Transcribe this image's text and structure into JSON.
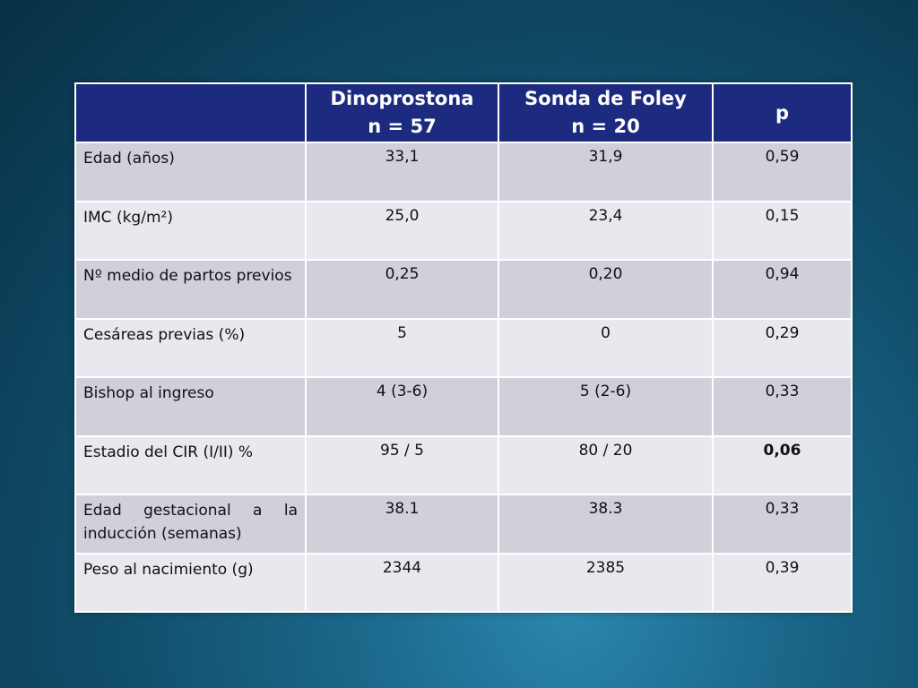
{
  "table": {
    "headers": [
      {
        "line1": "",
        "line2": ""
      },
      {
        "line1": "Dinoprostona",
        "line2": "n = 57"
      },
      {
        "line1": "Sonda de Foley",
        "line2": "n = 20"
      },
      {
        "line1": "p",
        "line2": ""
      }
    ],
    "rows": [
      {
        "label": "Edad (años)",
        "dino": "33,1",
        "foley": "31,9",
        "p": "0,59"
      },
      {
        "label": "IMC (kg/m²)",
        "dino": "25,0",
        "foley": "23,4",
        "p": "0,15"
      },
      {
        "label": "Nº medio de partos previos",
        "dino": "0,25",
        "foley": "0,20",
        "p": "0,94"
      },
      {
        "label": "Cesáreas previas (%)",
        "dino": "5",
        "foley": "0",
        "p": "0,29"
      },
      {
        "label": "Bishop al ingreso",
        "dino": "4 (3-6)",
        "foley": "5 (2-6)",
        "p": "0,33"
      },
      {
        "label": "Estadio del CIR (I/II) %",
        "dino": "95 / 5",
        "foley": "80 / 20",
        "p": "0,06"
      },
      {
        "label": "Edad gestacional a la inducción (semanas)",
        "dino": "38.1",
        "foley": "38.3",
        "p": "0,33"
      },
      {
        "label": "Peso al nacimiento (g)",
        "dino": "2344",
        "foley": "2385",
        "p": "0,39"
      }
    ]
  },
  "colors": {
    "header_bg": "#1c2b7f",
    "row_dark": "#cfd0d9",
    "row_light": "#e8e9ee",
    "background": "#114f6c"
  }
}
